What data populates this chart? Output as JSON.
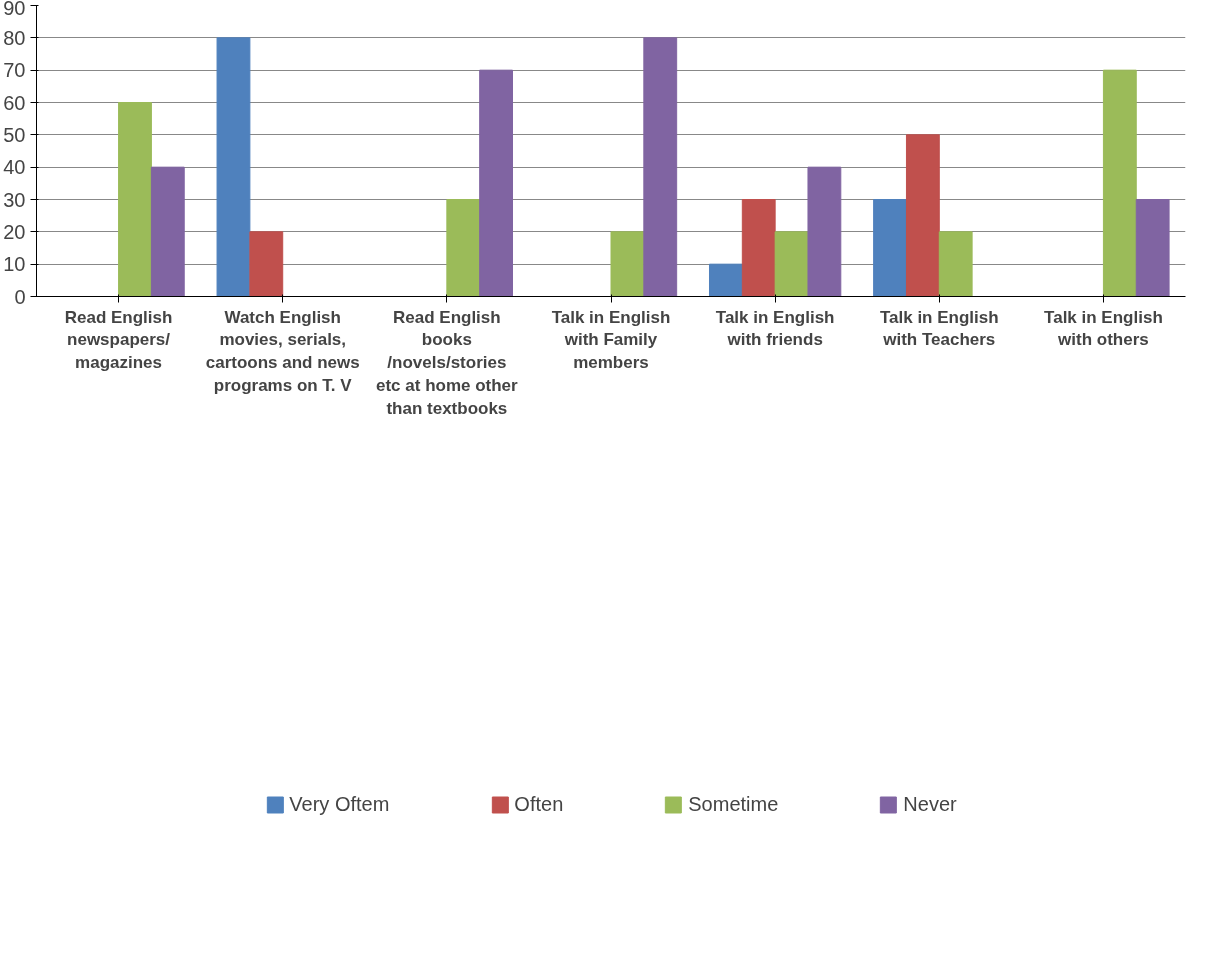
{
  "chart_data": {
    "type": "bar",
    "categories": [
      "Read English newspapers/ magazines",
      "Watch English movies, serials, cartoons and news programs on T. V",
      "Read English books /novels/stories etc at home other than textbooks",
      "Talk in English with Family members",
      "Talk in English with friends",
      "Talk in English with Teachers",
      "Talk in English with others"
    ],
    "series": [
      {
        "name": "Very Oftem",
        "color": "#4f81bd",
        "values": [
          0,
          80,
          0,
          0,
          10,
          30,
          0
        ]
      },
      {
        "name": "Often",
        "color": "#c0504d",
        "values": [
          0,
          20,
          0,
          0,
          30,
          50,
          0
        ]
      },
      {
        "name": "Sometime",
        "color": "#9bbb59",
        "values": [
          60,
          0,
          30,
          20,
          20,
          20,
          70
        ]
      },
      {
        "name": "Never",
        "color": "#8064a2",
        "values": [
          40,
          0,
          70,
          80,
          40,
          0,
          30
        ]
      }
    ],
    "ylim": [
      0,
      90
    ],
    "yticks": [
      0,
      10,
      20,
      30,
      40,
      50,
      60,
      70,
      80,
      90
    ],
    "grid": "y",
    "legend": "bottom"
  }
}
